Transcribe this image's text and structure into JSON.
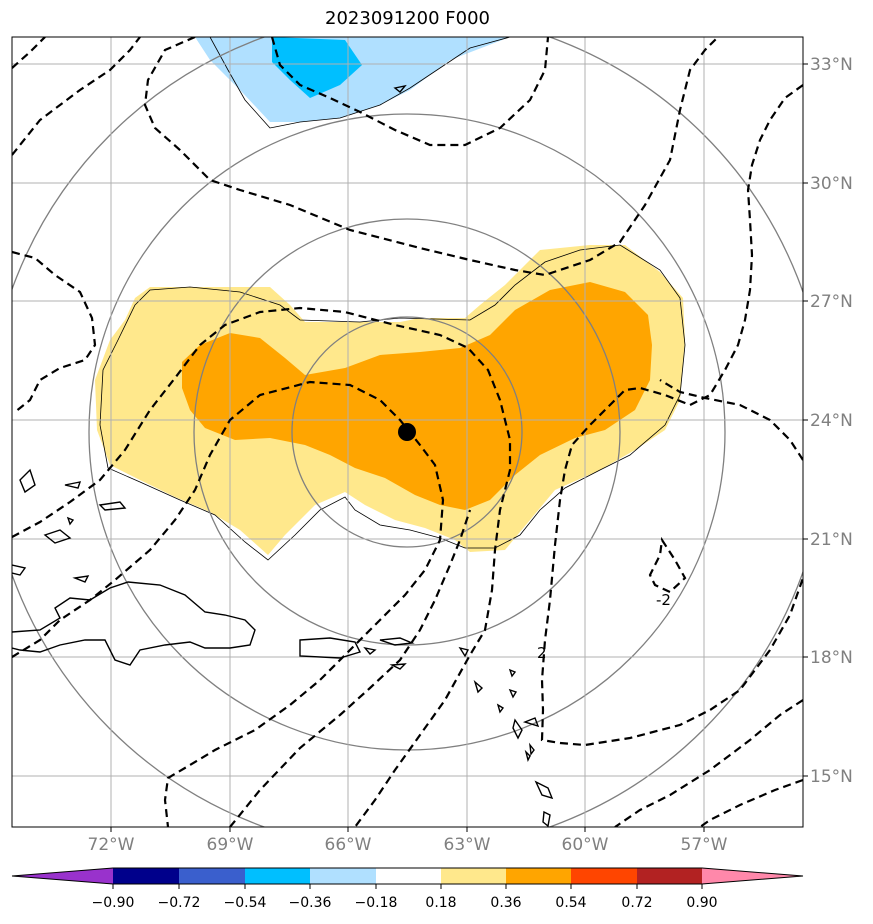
{
  "title": "2023091200 F000",
  "lat_labels": [
    "33°N",
    "30°N",
    "27°N",
    "24°N",
    "21°N",
    "18°N",
    "15°N"
  ],
  "lon_labels": [
    "72°W",
    "69°W",
    "66°W",
    "63°W",
    "60°W",
    "57°W"
  ],
  "contour_labels": [
    "2",
    "-2"
  ],
  "colorbar": {
    "tick_labels": [
      "−0.90",
      "−0.72",
      "−0.54",
      "−0.36",
      "−0.18",
      "0.18",
      "0.36",
      "0.54",
      "0.72",
      "0.90"
    ],
    "colors": [
      "#9932CC",
      "#00008B",
      "#3A5FCD",
      "#00BFFF",
      "#B0E0FF",
      "#FFFFFF",
      "#FFE88C",
      "#FFA500",
      "#FF4500",
      "#B22222",
      "#FF88AA"
    ]
  },
  "storm_center": {
    "lat": 23.7,
    "lon": -64.5
  },
  "fill_colors": {
    "light_yellow": "#FFE88C",
    "orange": "#FFA500",
    "light_blue": "#B0E0FF",
    "blue": "#00BFFF"
  }
}
